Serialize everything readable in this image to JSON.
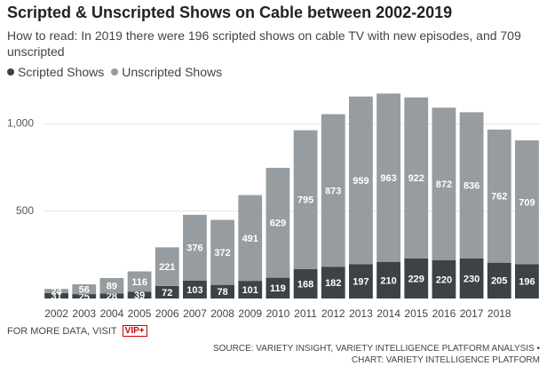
{
  "chart_data": {
    "type": "stacked_bar",
    "title": "Scripted & Unscripted Shows on Cable between 2002-2019",
    "subtitle": "How to read: In 2019 there were 196 scripted shows on cable TV with new episodes, and 709 unscripted",
    "categories": [
      "2002",
      "2003",
      "2004",
      "2005",
      "2006",
      "2007",
      "2008",
      "2009",
      "2010",
      "2011",
      "2012",
      "2013",
      "2014",
      "2015",
      "2016",
      "2017",
      "2018",
      null
    ],
    "series": [
      {
        "name": "Scripted Shows",
        "color": "#3d4246",
        "values": [
          31,
          25,
          28,
          39,
          72,
          103,
          78,
          101,
          119,
          168,
          182,
          197,
          210,
          229,
          220,
          230,
          205,
          196
        ]
      },
      {
        "name": "Unscripted Shows",
        "color": "#969c9f",
        "values": [
          24,
          56,
          89,
          116,
          221,
          376,
          372,
          491,
          629,
          795,
          873,
          959,
          963,
          922,
          872,
          836,
          762,
          709
        ]
      }
    ],
    "ylim": [
      0,
      1200
    ],
    "yticks": [
      500,
      {
        "value": 1000,
        "label": "1,000"
      }
    ],
    "grid": true
  },
  "footer": {
    "visit": "FOR MORE DATA, VISIT",
    "badge": "VIP+",
    "source": "SOURCE: VARIETY INSIGHT, VARIETY INTELLIGENCE PLATFORM ANALYSIS •",
    "credit": "CHART: VARIETY INTELLIGENCE PLATFORM"
  }
}
